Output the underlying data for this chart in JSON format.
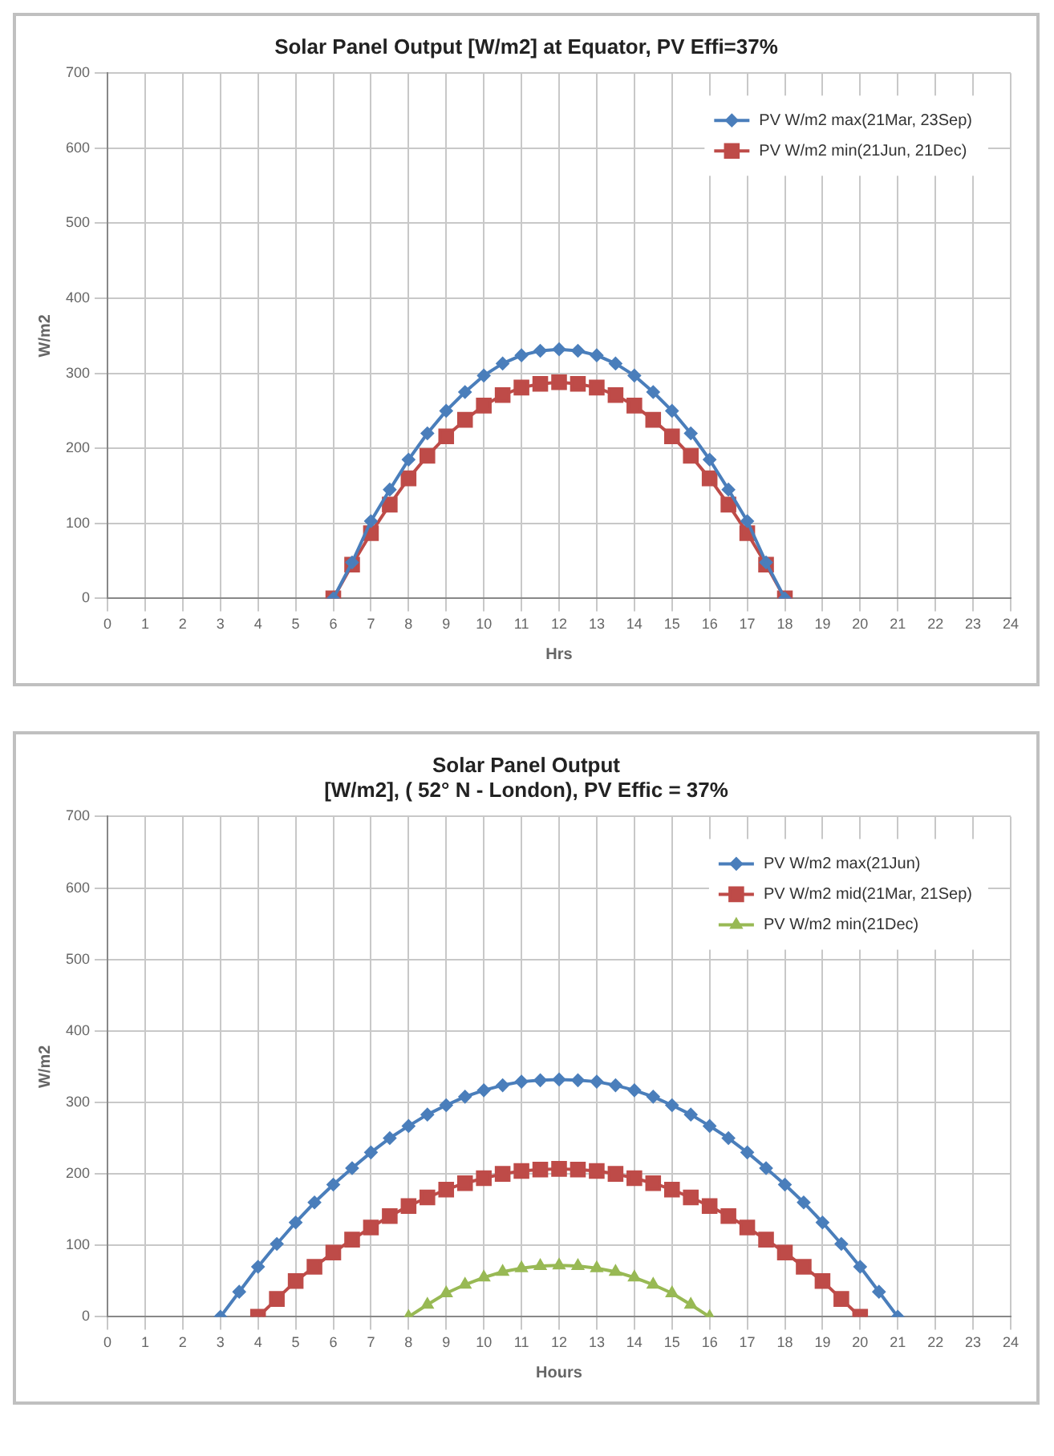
{
  "chart_data": [
    {
      "type": "line",
      "title": "Solar Panel Output [W/m2] at Equator, PV Effi=37%",
      "xlabel": "Hrs",
      "ylabel": "W/m2",
      "xlim": [
        0,
        24
      ],
      "xticks": [
        0,
        1,
        2,
        3,
        4,
        5,
        6,
        7,
        8,
        9,
        10,
        11,
        12,
        13,
        14,
        15,
        16,
        17,
        18,
        19,
        20,
        21,
        22,
        23,
        24
      ],
      "ylim": [
        0,
        700
      ],
      "yticks": [
        0,
        100,
        200,
        300,
        400,
        500,
        600,
        700
      ],
      "grid": true,
      "legend": "top right",
      "series": [
        {
          "name": "PV W/m2 max(21Mar, 23Sep)",
          "color": "#4a7ebb",
          "marker": "diamond",
          "x": [
            6,
            6.5,
            7,
            7.5,
            8,
            8.5,
            9,
            9.5,
            10,
            10.5,
            11,
            11.5,
            12,
            12.5,
            13,
            13.5,
            14,
            14.5,
            15,
            15.5,
            16,
            16.5,
            17,
            17.5,
            18
          ],
          "values": [
            0,
            48,
            103,
            145,
            185,
            220,
            250,
            275,
            297,
            313,
            324,
            330,
            332,
            330,
            324,
            313,
            297,
            275,
            250,
            220,
            185,
            145,
            103,
            48,
            0
          ]
        },
        {
          "name": "PV W/m2 min(21Jun, 21Dec)",
          "color": "#be4b48",
          "marker": "square",
          "x": [
            6,
            6.5,
            7,
            7.5,
            8,
            8.5,
            9,
            9.5,
            10,
            10.5,
            11,
            11.5,
            12,
            12.5,
            13,
            13.5,
            14,
            14.5,
            15,
            15.5,
            16,
            16.5,
            17,
            17.5,
            18
          ],
          "values": [
            0,
            45,
            87,
            125,
            160,
            190,
            216,
            238,
            257,
            271,
            281,
            286,
            288,
            286,
            281,
            271,
            257,
            238,
            216,
            190,
            160,
            125,
            87,
            45,
            0
          ]
        }
      ]
    },
    {
      "type": "line",
      "title": "Solar Panel Output",
      "subtitle": "[W/m2], ( 52° N - London), PV Effic = 37%",
      "xlabel": "Hours",
      "ylabel": "W/m2",
      "xlim": [
        0,
        24
      ],
      "xticks": [
        0,
        1,
        2,
        3,
        4,
        5,
        6,
        7,
        8,
        9,
        10,
        11,
        12,
        13,
        14,
        15,
        16,
        17,
        18,
        19,
        20,
        21,
        22,
        23,
        24
      ],
      "ylim": [
        0,
        700
      ],
      "yticks": [
        0,
        100,
        200,
        300,
        400,
        500,
        600,
        700
      ],
      "grid": true,
      "legend": "top right",
      "series": [
        {
          "name": "PV W/m2 max(21Jun)",
          "color": "#4a7ebb",
          "marker": "diamond",
          "x": [
            3,
            3.5,
            4,
            4.5,
            5,
            5.5,
            6,
            6.5,
            7,
            7.5,
            8,
            8.5,
            9,
            9.5,
            10,
            10.5,
            11,
            11.5,
            12,
            12.5,
            13,
            13.5,
            14,
            14.5,
            15,
            15.5,
            16,
            16.5,
            17,
            17.5,
            18,
            18.5,
            19,
            19.5,
            20,
            20.5,
            21
          ],
          "values": [
            0,
            35,
            70,
            102,
            132,
            160,
            185,
            208,
            230,
            250,
            267,
            283,
            296,
            308,
            317,
            324,
            329,
            331,
            332,
            331,
            329,
            324,
            317,
            308,
            296,
            283,
            267,
            250,
            230,
            208,
            185,
            160,
            132,
            102,
            70,
            35,
            0
          ]
        },
        {
          "name": "PV W/m2 mid(21Mar, 21Sep)",
          "color": "#be4b48",
          "marker": "square",
          "x": [
            4,
            4.5,
            5,
            5.5,
            6,
            6.5,
            7,
            7.5,
            8,
            8.5,
            9,
            9.5,
            10,
            10.5,
            11,
            11.5,
            12,
            12.5,
            13,
            13.5,
            14,
            14.5,
            15,
            15.5,
            16,
            16.5,
            17,
            17.5,
            18,
            18.5,
            19,
            19.5,
            20
          ],
          "values": [
            0,
            25,
            50,
            70,
            90,
            108,
            125,
            141,
            155,
            167,
            178,
            187,
            194,
            200,
            204,
            206,
            207,
            206,
            204,
            200,
            194,
            187,
            178,
            167,
            155,
            141,
            125,
            108,
            90,
            70,
            50,
            25,
            0
          ]
        },
        {
          "name": "PV W/m2 min(21Dec)",
          "color": "#98b954",
          "marker": "triangle",
          "x": [
            8,
            8.5,
            9,
            9.5,
            10,
            10.5,
            11,
            11.5,
            12,
            12.5,
            13,
            13.5,
            14,
            14.5,
            15,
            15.5,
            16
          ],
          "values": [
            0,
            17,
            33,
            45,
            55,
            63,
            68,
            71,
            72,
            71,
            68,
            63,
            55,
            45,
            33,
            17,
            0
          ]
        }
      ]
    }
  ]
}
